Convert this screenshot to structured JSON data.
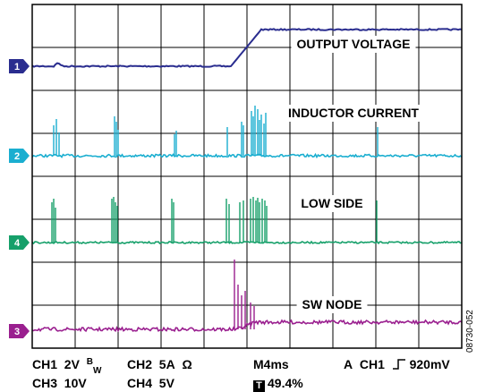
{
  "chart_data": {
    "type": "line",
    "grid": true,
    "x_divisions": 10,
    "y_divisions": 8,
    "channels": [
      {
        "marker": "1",
        "color": "#2a2d8f",
        "name": "OUTPUT VOLTAGE"
      },
      {
        "marker": "2",
        "color": "#1aaed0",
        "name": "INDUCTOR CURRENT"
      },
      {
        "marker": "4",
        "color": "#16a06a",
        "name": "LOW SIDE"
      },
      {
        "marker": "3",
        "color": "#9a1f8f",
        "name": "SW NODE"
      }
    ],
    "settings": {
      "ch1_label": "CH1",
      "ch1_scale": "2V",
      "bw_b": "B",
      "bw_w": "W",
      "ch2_label": "CH2",
      "ch2_scale": "5A",
      "ohm": "Ω",
      "ch3_label": "CH3",
      "ch3_scale": "10V",
      "ch4_label": "CH4",
      "ch4_scale": "5V",
      "timebase": "M4ms",
      "trigger_mode": "A",
      "trigger_channel": "CH1",
      "trigger_level": "920mV",
      "trigger_box": "T",
      "trigger_position": "49.4%"
    }
  },
  "doc_id": "08730-052"
}
